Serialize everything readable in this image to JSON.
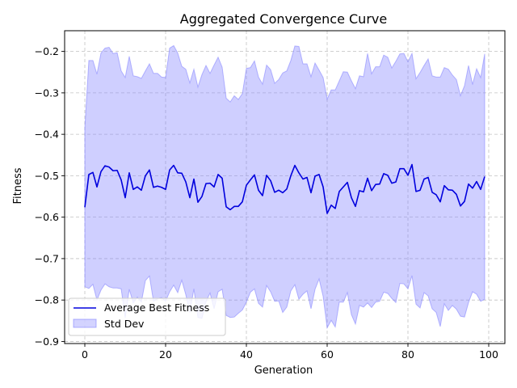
{
  "chart_data": {
    "type": "line",
    "title": "Aggregated Convergence Curve",
    "xlabel": "Generation",
    "ylabel": "Fitness",
    "xlim": [
      -5,
      104
    ],
    "ylim": [
      -0.905,
      -0.15
    ],
    "grid": true,
    "legend_position": "bottom-left",
    "xticks": [
      0,
      20,
      40,
      60,
      80,
      100
    ],
    "xtick_labels": [
      "0",
      "20",
      "40",
      "60",
      "80",
      "100"
    ],
    "yticks": [
      -0.2,
      -0.3,
      -0.4,
      -0.5,
      -0.6,
      -0.7,
      -0.8,
      -0.9
    ],
    "ytick_labels": [
      "−0.2",
      "−0.3",
      "−0.4",
      "−0.5",
      "−0.6",
      "−0.7",
      "−0.8",
      "−0.9"
    ],
    "series": [
      {
        "name": "Average Best Fitness",
        "color": "#0000dd",
        "x": [
          0,
          1,
          2,
          3,
          4,
          5,
          6,
          7,
          8,
          9,
          10,
          11,
          12,
          13,
          14,
          15,
          16,
          17,
          18,
          19,
          20,
          21,
          22,
          23,
          24,
          25,
          26,
          27,
          28,
          29,
          30,
          31,
          32,
          33,
          34,
          35,
          36,
          37,
          38,
          39,
          40,
          41,
          42,
          43,
          44,
          45,
          46,
          47,
          48,
          49,
          50,
          51,
          52,
          53,
          54,
          55,
          56,
          57,
          58,
          59,
          60,
          61,
          62,
          63,
          64,
          65,
          66,
          67,
          68,
          69,
          70,
          71,
          72,
          73,
          74,
          75,
          76,
          77,
          78,
          79,
          80,
          81,
          82,
          83,
          84,
          85,
          86,
          87,
          88,
          89,
          90,
          91,
          92,
          93,
          94,
          95,
          96,
          97,
          98,
          99
        ],
        "values": [
          -0.576,
          -0.497,
          -0.492,
          -0.527,
          -0.49,
          -0.476,
          -0.479,
          -0.488,
          -0.487,
          -0.51,
          -0.553,
          -0.493,
          -0.533,
          -0.527,
          -0.535,
          -0.5,
          -0.486,
          -0.528,
          -0.525,
          -0.528,
          -0.533,
          -0.486,
          -0.475,
          -0.493,
          -0.494,
          -0.515,
          -0.553,
          -0.508,
          -0.564,
          -0.55,
          -0.519,
          -0.518,
          -0.527,
          -0.497,
          -0.506,
          -0.575,
          -0.582,
          -0.574,
          -0.574,
          -0.563,
          -0.523,
          -0.51,
          -0.498,
          -0.535,
          -0.548,
          -0.499,
          -0.512,
          -0.54,
          -0.535,
          -0.541,
          -0.532,
          -0.5,
          -0.475,
          -0.493,
          -0.508,
          -0.504,
          -0.541,
          -0.501,
          -0.497,
          -0.527,
          -0.591,
          -0.571,
          -0.579,
          -0.538,
          -0.527,
          -0.516,
          -0.553,
          -0.574,
          -0.536,
          -0.539,
          -0.506,
          -0.536,
          -0.521,
          -0.52,
          -0.495,
          -0.499,
          -0.518,
          -0.515,
          -0.483,
          -0.483,
          -0.499,
          -0.473,
          -0.538,
          -0.535,
          -0.508,
          -0.504,
          -0.54,
          -0.546,
          -0.563,
          -0.524,
          -0.534,
          -0.535,
          -0.545,
          -0.573,
          -0.562,
          -0.52,
          -0.53,
          -0.514,
          -0.533,
          -0.502
        ]
      },
      {
        "name": "Std Dev",
        "color": "#8080ff",
        "x": [
          0,
          1,
          2,
          3,
          4,
          5,
          6,
          7,
          8,
          9,
          10,
          11,
          12,
          13,
          14,
          15,
          16,
          17,
          18,
          19,
          20,
          21,
          22,
          23,
          24,
          25,
          26,
          27,
          28,
          29,
          30,
          31,
          32,
          33,
          34,
          35,
          36,
          37,
          38,
          39,
          40,
          41,
          42,
          43,
          44,
          45,
          46,
          47,
          48,
          49,
          50,
          51,
          52,
          53,
          54,
          55,
          56,
          57,
          58,
          59,
          60,
          61,
          62,
          63,
          64,
          65,
          66,
          67,
          68,
          69,
          70,
          71,
          72,
          73,
          74,
          75,
          76,
          77,
          78,
          79,
          80,
          81,
          82,
          83,
          84,
          85,
          86,
          87,
          88,
          89,
          90,
          91,
          92,
          93,
          94,
          95,
          96,
          97,
          98,
          99
        ],
        "upper": [
          -0.385,
          -0.222,
          -0.222,
          -0.255,
          -0.204,
          -0.192,
          -0.19,
          -0.205,
          -0.203,
          -0.247,
          -0.263,
          -0.212,
          -0.259,
          -0.261,
          -0.265,
          -0.247,
          -0.23,
          -0.253,
          -0.253,
          -0.262,
          -0.263,
          -0.192,
          -0.186,
          -0.204,
          -0.236,
          -0.243,
          -0.276,
          -0.243,
          -0.286,
          -0.256,
          -0.234,
          -0.253,
          -0.233,
          -0.214,
          -0.238,
          -0.313,
          -0.322,
          -0.307,
          -0.316,
          -0.302,
          -0.241,
          -0.239,
          -0.223,
          -0.262,
          -0.279,
          -0.233,
          -0.244,
          -0.277,
          -0.268,
          -0.252,
          -0.247,
          -0.222,
          -0.187,
          -0.188,
          -0.23,
          -0.23,
          -0.261,
          -0.228,
          -0.245,
          -0.263,
          -0.315,
          -0.293,
          -0.293,
          -0.271,
          -0.249,
          -0.25,
          -0.271,
          -0.29,
          -0.259,
          -0.261,
          -0.205,
          -0.254,
          -0.237,
          -0.237,
          -0.209,
          -0.214,
          -0.24,
          -0.224,
          -0.206,
          -0.205,
          -0.225,
          -0.205,
          -0.266,
          -0.251,
          -0.234,
          -0.218,
          -0.259,
          -0.262,
          -0.262,
          -0.239,
          -0.243,
          -0.257,
          -0.268,
          -0.307,
          -0.283,
          -0.234,
          -0.28,
          -0.242,
          -0.263,
          -0.206
        ],
        "lower": [
          -0.768,
          -0.772,
          -0.762,
          -0.8,
          -0.776,
          -0.761,
          -0.768,
          -0.771,
          -0.771,
          -0.773,
          -0.843,
          -0.774,
          -0.807,
          -0.793,
          -0.805,
          -0.753,
          -0.742,
          -0.803,
          -0.797,
          -0.794,
          -0.803,
          -0.78,
          -0.764,
          -0.782,
          -0.752,
          -0.787,
          -0.83,
          -0.773,
          -0.842,
          -0.844,
          -0.804,
          -0.783,
          -0.821,
          -0.78,
          -0.774,
          -0.837,
          -0.842,
          -0.841,
          -0.832,
          -0.824,
          -0.805,
          -0.781,
          -0.773,
          -0.808,
          -0.817,
          -0.765,
          -0.78,
          -0.803,
          -0.802,
          -0.83,
          -0.817,
          -0.778,
          -0.763,
          -0.798,
          -0.786,
          -0.778,
          -0.821,
          -0.774,
          -0.749,
          -0.791,
          -0.867,
          -0.849,
          -0.865,
          -0.805,
          -0.805,
          -0.782,
          -0.835,
          -0.858,
          -0.813,
          -0.817,
          -0.807,
          -0.818,
          -0.805,
          -0.803,
          -0.781,
          -0.784,
          -0.796,
          -0.806,
          -0.76,
          -0.761,
          -0.773,
          -0.741,
          -0.81,
          -0.819,
          -0.782,
          -0.79,
          -0.821,
          -0.83,
          -0.864,
          -0.809,
          -0.825,
          -0.813,
          -0.822,
          -0.839,
          -0.841,
          -0.806,
          -0.78,
          -0.786,
          -0.803,
          -0.798
        ]
      }
    ]
  }
}
